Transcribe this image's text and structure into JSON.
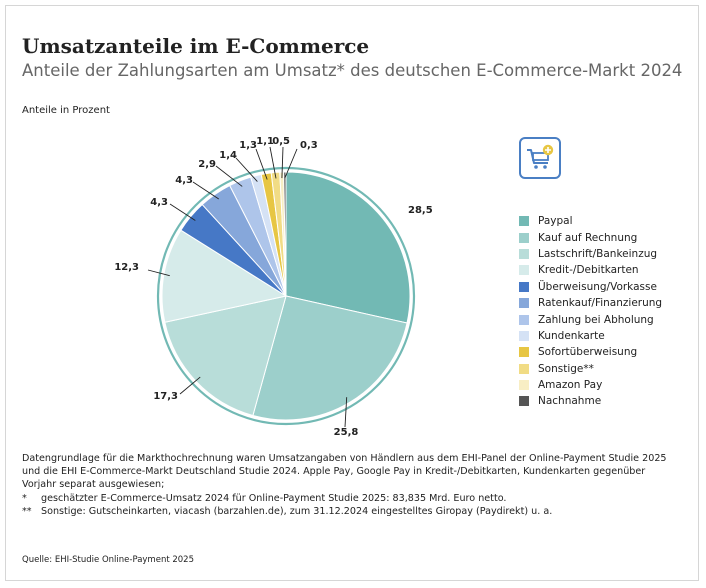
{
  "title": "Umsatzanteile im E-Commerce",
  "subtitle": "Anteile der Zahlungsarten am Umsatz* des deutschen E-Commerce-Markt 2024",
  "unit_label": "Anteile in Prozent",
  "icon": "shopping-cart-plus-icon",
  "notes": {
    "basis": "Datengrundlage für die Markthochrechnung waren Umsatzangaben von Händlern aus dem EHI-Panel der Online-Payment Studie 2025 und die EHI E-Commerce-Markt Deutschland Studie 2024. Apple Pay, Google Pay in Kredit-/Debitkarten, Kundenkarten gegenüber Vorjahr separat ausgewiesen;",
    "footnote1_mark": "*",
    "footnote1": "geschätzter E-Commerce-Umsatz 2024 für Online-Payment Studie 2025: 83,835 Mrd. Euro netto.",
    "footnote2_mark": "**",
    "footnote2": "Sonstige: Gutscheinkarten, viacash (barzahlen.de), zum 31.12.2024 eingestelltes Giropay (Paydirekt) u. a."
  },
  "source": "Quelle: EHI-Studie Online-Payment 2025",
  "chart_data": {
    "type": "pie",
    "title": "Umsatzanteile im E-Commerce",
    "subtitle": "Anteile der Zahlungsarten am Umsatz* des deutschen E-Commerce-Markt 2024",
    "unit": "Anteile in Prozent",
    "legend_position": "right",
    "start": "top, clockwise",
    "slices": [
      {
        "label": "Paypal",
        "value": 28.5,
        "display": "28,5",
        "color": "#72b9b4"
      },
      {
        "label": "Kauf auf Rechnung",
        "value": 25.8,
        "display": "25,8",
        "color": "#9ccfcb"
      },
      {
        "label": "Lastschrift/Bankeinzug",
        "value": 17.3,
        "display": "17,3",
        "color": "#b8ddd9"
      },
      {
        "label": "Kredit-/Debitkarten",
        "value": 12.3,
        "display": "12,3",
        "color": "#d6ebea"
      },
      {
        "label": "Überweisung/Vorkasse",
        "value": 4.3,
        "display": "4,3",
        "color": "#4678c6"
      },
      {
        "label": "Ratenkauf/Finanzierung",
        "value": 4.3,
        "display": "4,3",
        "color": "#86a7da"
      },
      {
        "label": "Zahlung bei Abholung",
        "value": 2.9,
        "display": "2,9",
        "color": "#aec5ea"
      },
      {
        "label": "Kundenkarte",
        "value": 1.4,
        "display": "1,4",
        "color": "#d5e2f5"
      },
      {
        "label": "Sofortüberweisung",
        "value": 1.3,
        "display": "1,3",
        "color": "#e7c643"
      },
      {
        "label": "Sonstige**",
        "value": 1.1,
        "display": "1,1",
        "color": "#f1dc85"
      },
      {
        "label": "Amazon Pay",
        "value": 0.5,
        "display": "0,5",
        "color": "#f8eec4"
      },
      {
        "label": "Nachnahme",
        "value": 0.3,
        "display": "0,3",
        "color": "#555555"
      }
    ]
  }
}
